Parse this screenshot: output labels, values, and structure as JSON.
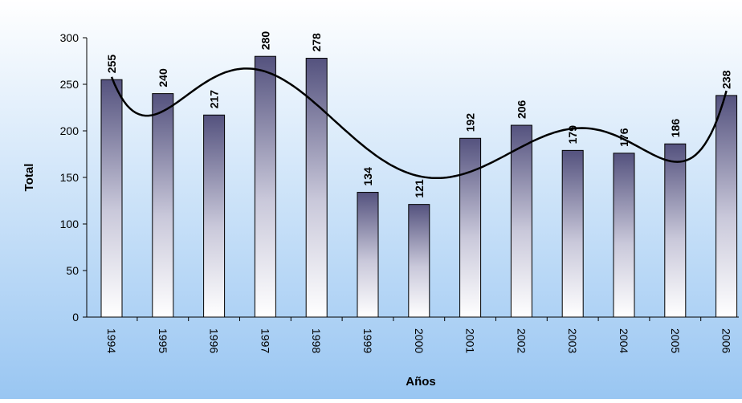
{
  "chart_data": {
    "type": "bar",
    "categories": [
      "1994",
      "1995",
      "1996",
      "1997",
      "1998",
      "1999",
      "2000",
      "2001",
      "2002",
      "2003",
      "2004",
      "2005",
      "2006"
    ],
    "series": [
      {
        "type": "bar",
        "values": [
          255,
          240,
          217,
          280,
          278,
          134,
          121,
          192,
          206,
          179,
          176,
          186,
          238
        ]
      }
    ],
    "trend_line": {
      "type": "polynomial"
    },
    "xlabel": "Años",
    "ylabel": "Total",
    "ylim": [
      0,
      300
    ],
    "yticks": [
      0,
      50,
      100,
      150,
      200,
      250,
      300
    ],
    "legend": "none",
    "grid": false,
    "colors": {
      "bar_top": "#54527e",
      "bar_bottom": "#ffffff",
      "background_top": "#ffffff",
      "background_bottom": "#99c6f2",
      "trend_line": "#000000"
    }
  }
}
